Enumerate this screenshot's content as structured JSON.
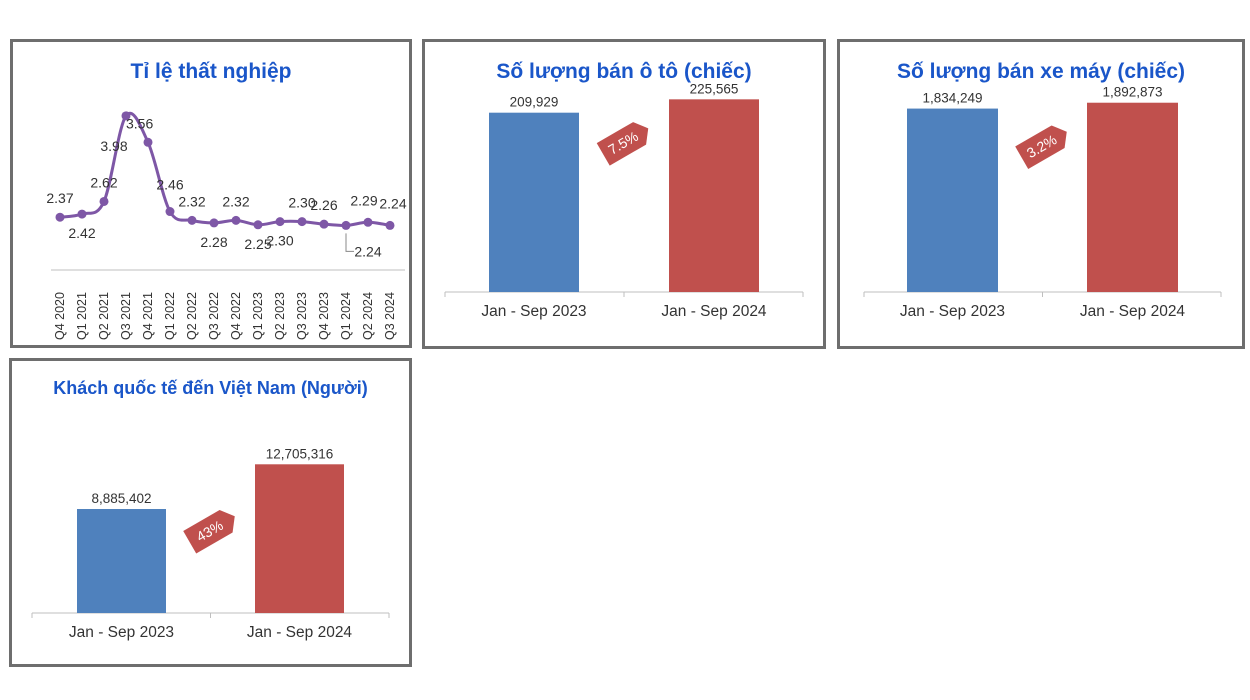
{
  "colors": {
    "title": "#1a56c9",
    "bar_2023": "#4f81bd",
    "bar_2024": "#c0504d",
    "line": "#7e57a6",
    "growth_tag": "#c0504d"
  },
  "chart_data": [
    {
      "type": "line",
      "title": "Tỉ lệ thất nghiệp",
      "categories": [
        "Q4 2020",
        "Q1 2021",
        "Q2 2021",
        "Q3 2021",
        "Q4 2021",
        "Q1 2022",
        "Q2 2022",
        "Q3 2022",
        "Q4 2022",
        "Q1 2023",
        "Q2 2023",
        "Q3 2023",
        "Q4 2023",
        "Q1 2024",
        "Q2 2024",
        "Q3 2024"
      ],
      "values": [
        2.37,
        2.42,
        2.62,
        3.98,
        3.56,
        2.46,
        2.32,
        2.28,
        2.32,
        2.25,
        2.3,
        2.3,
        2.26,
        2.24,
        2.29,
        2.24
      ],
      "labels": [
        "2.37",
        "2.42",
        "2.62",
        "3.98",
        "3.56",
        "2.46",
        "2.32",
        "2.28",
        "2.32",
        "2.25",
        "2.30",
        "2.30",
        "2.26",
        "2.24",
        "2.29",
        "2.24"
      ],
      "ylim": [
        1.5,
        4.2
      ],
      "xlabel": "",
      "ylabel": ""
    },
    {
      "type": "bar",
      "title": "Số lượng bán ô tô (chiếc)",
      "categories": [
        "Jan - Sep 2023",
        "Jan - Sep 2024"
      ],
      "values": [
        209929,
        225565
      ],
      "labels": [
        "209,929",
        "225,565"
      ],
      "growth": "7.5%",
      "ylim": [
        0,
        240000
      ]
    },
    {
      "type": "bar",
      "title": "Số lượng bán xe máy (chiếc)",
      "categories": [
        "Jan - Sep 2023",
        "Jan - Sep 2024"
      ],
      "values": [
        1834249,
        1892873
      ],
      "labels": [
        "1,834,249",
        "1,892,873"
      ],
      "growth": "3.2%",
      "ylim": [
        0,
        2000000
      ]
    },
    {
      "type": "bar",
      "title": "Khách quốc tế đến Việt Nam (Người)",
      "categories": [
        "Jan - Sep 2023",
        "Jan - Sep 2024"
      ],
      "values": [
        8885402,
        12705316
      ],
      "labels": [
        "8,885,402",
        "12,705,316"
      ],
      "growth": "43%",
      "ylim": [
        0,
        13500000
      ]
    }
  ]
}
